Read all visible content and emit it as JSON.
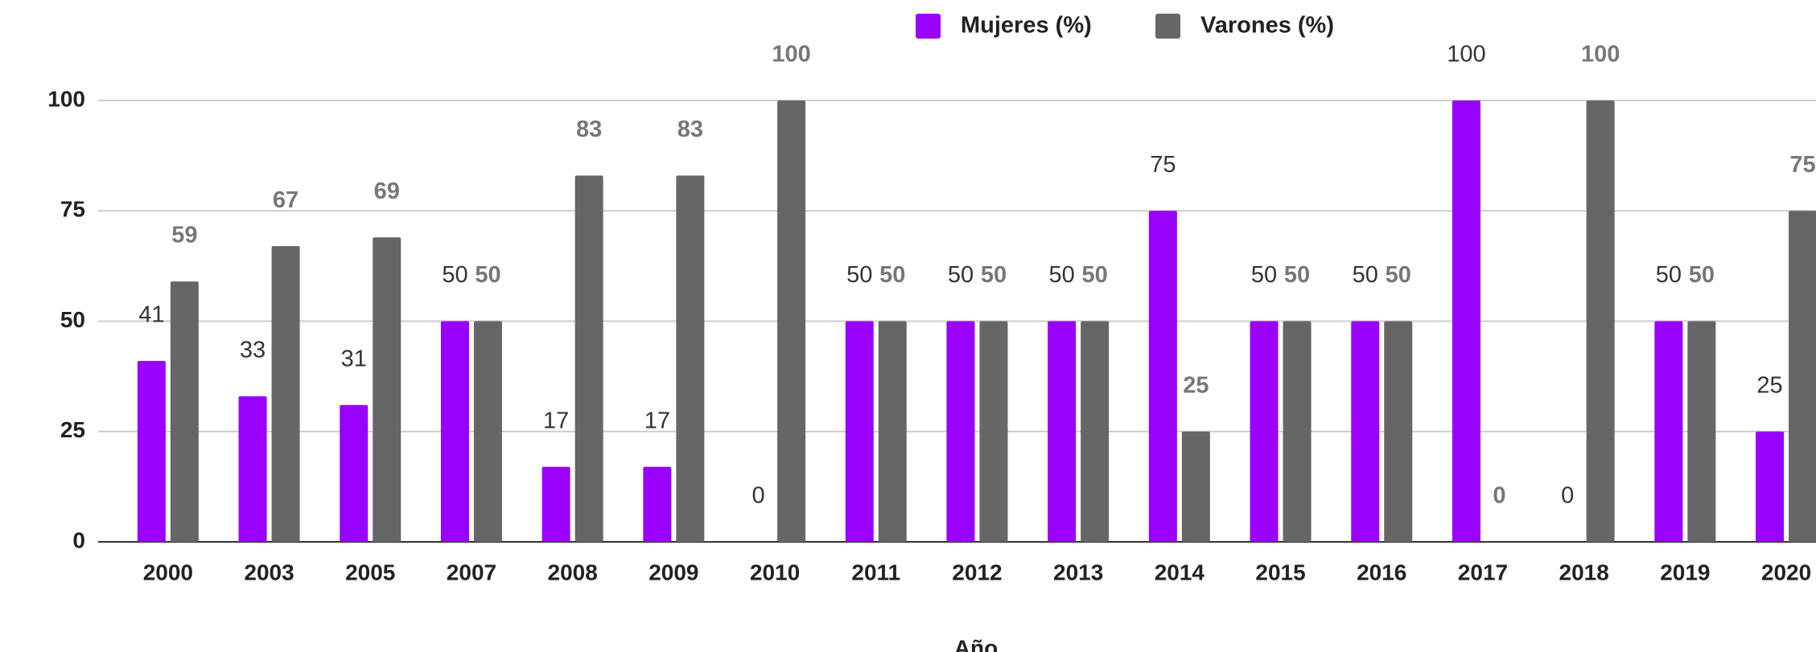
{
  "chart_data": {
    "type": "bar",
    "x_label": "Año",
    "categories": [
      "2000",
      "2003",
      "2005",
      "2007",
      "2008",
      "2009",
      "2010",
      "2011",
      "2012",
      "2013",
      "2014",
      "2015",
      "2016",
      "2017",
      "2018",
      "2019",
      "2020"
    ],
    "series": [
      {
        "name": "Mujeres (%)",
        "color": "#9900ff",
        "values": [
          41,
          33,
          31,
          50,
          17,
          17,
          0,
          50,
          50,
          50,
          75,
          50,
          50,
          100,
          0,
          50,
          25
        ]
      },
      {
        "name": "Varones (%)",
        "color": "#666666",
        "values": [
          59,
          67,
          69,
          50,
          83,
          83,
          100,
          50,
          50,
          50,
          25,
          50,
          50,
          0,
          100,
          50,
          75
        ]
      }
    ],
    "ylim": [
      0,
      100
    ],
    "yticks": [
      0,
      25,
      50,
      75,
      100
    ],
    "grid": true,
    "legend": "top"
  }
}
